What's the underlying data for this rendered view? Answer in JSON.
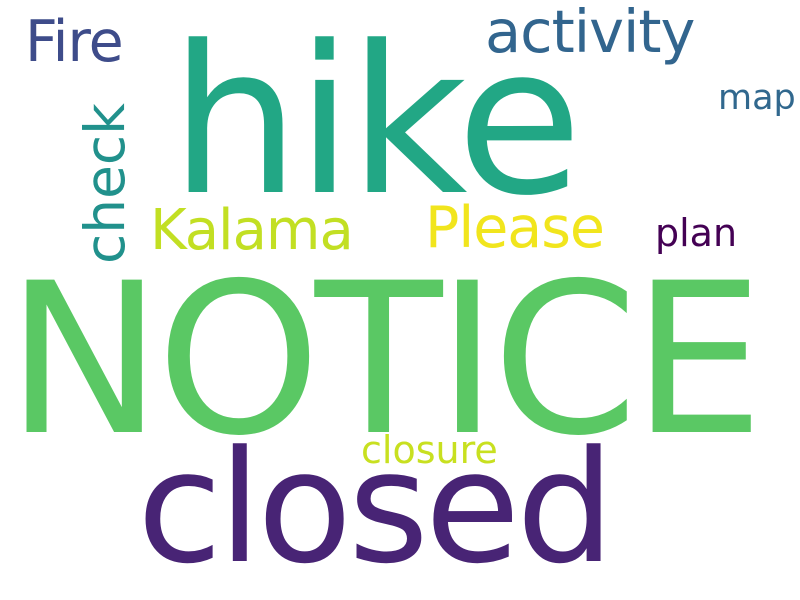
{
  "word_cloud": {
    "words": [
      {
        "id": "notice",
        "text": "NOTICE",
        "color": "#5ac864"
      },
      {
        "id": "hike",
        "text": "hike",
        "color": "#22a785"
      },
      {
        "id": "closed",
        "text": "closed",
        "color": "#482475"
      },
      {
        "id": "activity",
        "text": "activity",
        "color": "#32658e"
      },
      {
        "id": "fire",
        "text": "Fire",
        "color": "#3e4c8a"
      },
      {
        "id": "kalama",
        "text": "Kalama",
        "color": "#c2df23"
      },
      {
        "id": "please",
        "text": "Please",
        "color": "#f1e51d"
      },
      {
        "id": "plan",
        "text": "plan",
        "color": "#440154"
      },
      {
        "id": "map",
        "text": "map",
        "color": "#31688e"
      },
      {
        "id": "closure",
        "text": "closure",
        "color": "#c8e020"
      },
      {
        "id": "check",
        "text": "check",
        "color": "#21918c",
        "orientation": "vertical"
      }
    ]
  }
}
